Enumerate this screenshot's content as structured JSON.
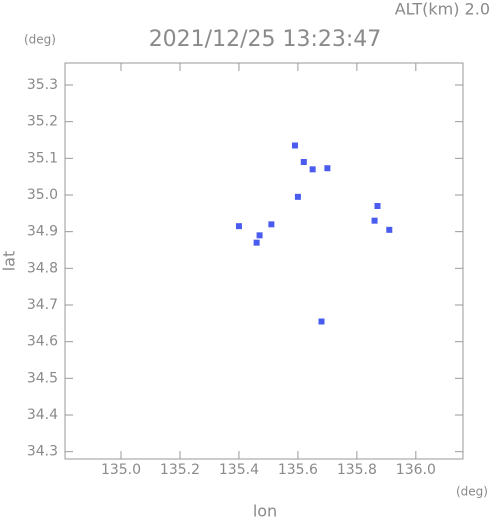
{
  "chart_data": {
    "type": "scatter",
    "title": "2021/12/25 13:23:47",
    "annotation": "ALT(km) 2.0",
    "y_unit": "(deg)",
    "x_unit": "(deg)",
    "x_label": "lon",
    "y_label": "lat",
    "color": "#4a5cf0",
    "x": [
      135.59,
      135.62,
      135.65,
      135.7,
      135.6,
      135.4,
      135.47,
      135.46,
      135.51,
      135.86,
      135.87,
      135.91,
      135.68
    ],
    "y": [
      35.135,
      35.09,
      35.07,
      35.073,
      34.995,
      34.915,
      34.89,
      34.87,
      34.92,
      34.93,
      34.97,
      34.905,
      34.655
    ],
    "xlim": [
      134.81,
      136.16
    ],
    "ylim": [
      34.28,
      35.36
    ],
    "xticks": [
      {
        "value": 135.0,
        "label": "135.0"
      },
      135.2,
      135.4,
      135.6,
      135.8,
      {
        "value": 136.0,
        "label": "136.0"
      }
    ],
    "yticks": [
      35.3,
      35.2,
      35.1,
      {
        "value": 35.0,
        "label": "35.0"
      },
      34.9,
      34.8,
      34.7,
      34.6,
      34.5,
      34.4,
      34.3
    ]
  }
}
